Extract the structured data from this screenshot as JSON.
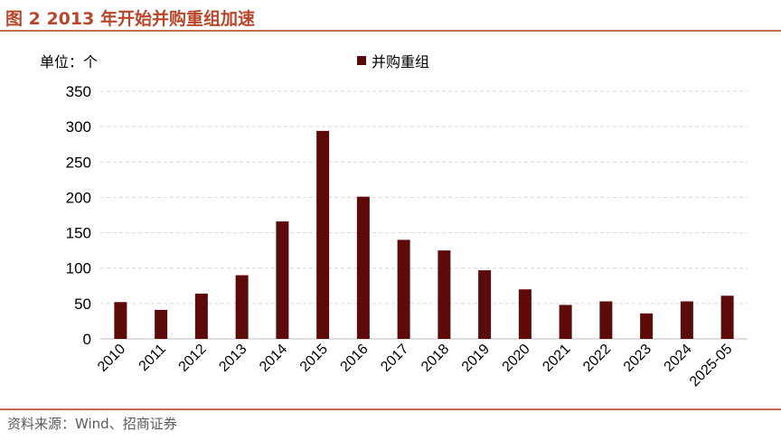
{
  "header": {
    "title": "图 2 2013 年开始并购重组加速"
  },
  "footer": {
    "source": "资料来源：Wind、招商证券"
  },
  "chart_data": {
    "type": "bar",
    "title": "",
    "unit_label": "单位：个",
    "xlabel": "",
    "ylabel": "",
    "categories": [
      "2010",
      "2011",
      "2012",
      "2013",
      "2014",
      "2015",
      "2016",
      "2017",
      "2018",
      "2019",
      "2020",
      "2021",
      "2022",
      "2023",
      "2024",
      "2025-05"
    ],
    "series": [
      {
        "name": "并购重组",
        "color": "#5c0a0a",
        "values": [
          52,
          41,
          64,
          90,
          166,
          294,
          201,
          140,
          125,
          97,
          70,
          48,
          53,
          36,
          53,
          61
        ]
      }
    ],
    "ylim": [
      0,
      350
    ],
    "yticks": [
      0,
      50,
      100,
      150,
      200,
      250,
      300,
      350
    ],
    "grid": true,
    "legend_position": "top-center"
  }
}
